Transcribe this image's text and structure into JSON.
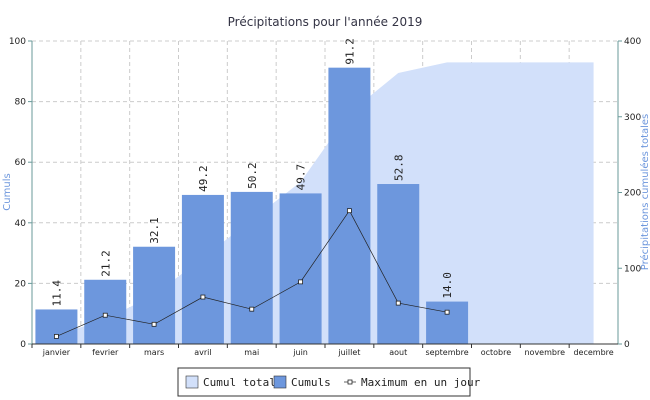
{
  "chart_data": {
    "type": "bar",
    "title": "Précipitations pour l'année 2019",
    "ylabel": "Cumuls",
    "y2label": "Précipitations cumulées totales",
    "categories": [
      "janvier",
      "fevrier",
      "mars",
      "avril",
      "mai",
      "juin",
      "juillet",
      "aout",
      "septembre",
      "octobre",
      "novembre",
      "decembre"
    ],
    "ylim": [
      0,
      100
    ],
    "yticks": [
      0,
      20,
      40,
      60,
      80,
      100
    ],
    "y2lim": [
      0,
      400
    ],
    "y2ticks": [
      0,
      100,
      200,
      300,
      400
    ],
    "grid": true,
    "legend": "bottom",
    "series": [
      {
        "name": "Cumul total",
        "type": "area",
        "axis": "y2",
        "color": "#d2e0fa",
        "values": [
          11.4,
          32.6,
          64.7,
          113.9,
          164.1,
          213.8,
          305.0,
          357.8,
          371.8,
          371.8,
          371.8,
          371.8
        ]
      },
      {
        "name": "Cumuls",
        "type": "bar",
        "color": "#6d97dd",
        "values": [
          11.4,
          21.2,
          32.1,
          49.2,
          50.2,
          49.7,
          91.2,
          52.8,
          14.0,
          null,
          null,
          null
        ],
        "value_labels": [
          "11.4",
          "21.2",
          "32.1",
          "49.2",
          "50.2",
          "49.7",
          "91.2",
          "52.8",
          "14.0",
          null,
          null,
          null
        ]
      },
      {
        "name": "Maximum en un jour",
        "type": "line",
        "color": "#222222",
        "values": [
          2.5,
          9.5,
          6.5,
          15.5,
          11.5,
          20.5,
          44,
          13.5,
          10.5,
          null,
          null,
          null
        ]
      }
    ]
  }
}
